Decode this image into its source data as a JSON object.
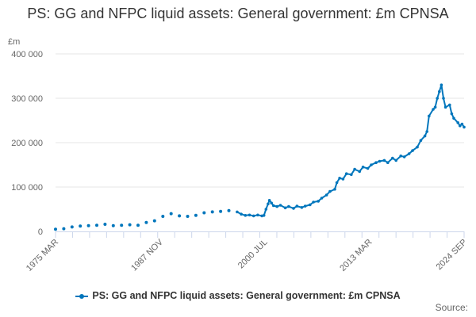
{
  "chart_data": {
    "type": "line",
    "title": "PS: GG and NFPC liquid assets: General government: £m CPNSA",
    "ylabel": "£m",
    "xlabel": "",
    "y_ticks": [
      "0",
      "100 000",
      "200 000",
      "300 000",
      "400 000"
    ],
    "x_tick_labels": [
      "1975 MAR",
      "1987 NOV",
      "2000 JUL",
      "2013 MAR",
      "2024 SEP"
    ],
    "ylim": [
      0,
      400000
    ],
    "xlim": [
      "1975-03",
      "2024-09"
    ],
    "grid": "horizontal",
    "legend_position": "bottom",
    "credits": "Source:",
    "colors": {
      "series": "#0076bc",
      "grid": "#e6e6e6",
      "axis": "#ccd6eb"
    },
    "series": [
      {
        "name": "PS: GG and NFPC liquid assets: General government: £m CPNSA",
        "points": [
          [
            "1975-03",
            5000
          ],
          [
            "1976-03",
            6000
          ],
          [
            "1977-03",
            10000
          ],
          [
            "1978-03",
            12000
          ],
          [
            "1979-03",
            13000
          ],
          [
            "1980-03",
            14000
          ],
          [
            "1981-03",
            16000
          ],
          [
            "1982-03",
            13000
          ],
          [
            "1983-03",
            14000
          ],
          [
            "1984-03",
            15000
          ],
          [
            "1985-03",
            14000
          ],
          [
            "1986-03",
            20000
          ],
          [
            "1987-03",
            24000
          ],
          [
            "1988-03",
            34000
          ],
          [
            "1989-03",
            40000
          ],
          [
            "1990-03",
            35000
          ],
          [
            "1991-03",
            34000
          ],
          [
            "1992-03",
            36000
          ],
          [
            "1993-03",
            42000
          ],
          [
            "1994-03",
            44000
          ],
          [
            "1995-03",
            45000
          ],
          [
            "1996-03",
            47000
          ],
          [
            "1997-03",
            44000
          ],
          [
            "1997-09",
            39000
          ],
          [
            "1998-03",
            36000
          ],
          [
            "1998-09",
            37000
          ],
          [
            "1999-03",
            35000
          ],
          [
            "1999-09",
            37000
          ],
          [
            "2000-03",
            35000
          ],
          [
            "2000-06",
            36000
          ],
          [
            "2000-09",
            50000
          ],
          [
            "2000-12",
            62000
          ],
          [
            "2001-02",
            70000
          ],
          [
            "2001-05",
            64000
          ],
          [
            "2001-08",
            58000
          ],
          [
            "2002-01",
            56000
          ],
          [
            "2002-06",
            59000
          ],
          [
            "2003-01",
            53000
          ],
          [
            "2003-06",
            56000
          ],
          [
            "2004-01",
            52000
          ],
          [
            "2004-06",
            57000
          ],
          [
            "2005-01",
            54000
          ],
          [
            "2005-06",
            57000
          ],
          [
            "2006-01",
            60000
          ],
          [
            "2006-06",
            66000
          ],
          [
            "2007-01",
            68000
          ],
          [
            "2007-06",
            75000
          ],
          [
            "2008-01",
            82000
          ],
          [
            "2008-06",
            90000
          ],
          [
            "2009-01",
            95000
          ],
          [
            "2009-04",
            110000
          ],
          [
            "2009-08",
            120000
          ],
          [
            "2010-01",
            118000
          ],
          [
            "2010-06",
            130000
          ],
          [
            "2011-01",
            128000
          ],
          [
            "2011-06",
            140000
          ],
          [
            "2012-01",
            135000
          ],
          [
            "2012-06",
            145000
          ],
          [
            "2013-01",
            142000
          ],
          [
            "2013-06",
            150000
          ],
          [
            "2014-01",
            155000
          ],
          [
            "2014-06",
            158000
          ],
          [
            "2015-01",
            160000
          ],
          [
            "2015-06",
            155000
          ],
          [
            "2016-01",
            165000
          ],
          [
            "2016-06",
            160000
          ],
          [
            "2017-01",
            170000
          ],
          [
            "2017-06",
            168000
          ],
          [
            "2018-01",
            175000
          ],
          [
            "2018-06",
            182000
          ],
          [
            "2019-01",
            190000
          ],
          [
            "2019-06",
            205000
          ],
          [
            "2019-12",
            215000
          ],
          [
            "2020-03",
            225000
          ],
          [
            "2020-06",
            260000
          ],
          [
            "2020-12",
            275000
          ],
          [
            "2021-03",
            280000
          ],
          [
            "2021-06",
            300000
          ],
          [
            "2021-09",
            315000
          ],
          [
            "2021-12",
            330000
          ],
          [
            "2022-03",
            300000
          ],
          [
            "2022-06",
            280000
          ],
          [
            "2022-12",
            285000
          ],
          [
            "2023-03",
            265000
          ],
          [
            "2023-06",
            255000
          ],
          [
            "2023-12",
            245000
          ],
          [
            "2024-03",
            238000
          ],
          [
            "2024-06",
            242000
          ],
          [
            "2024-09",
            235000
          ]
        ]
      }
    ]
  }
}
